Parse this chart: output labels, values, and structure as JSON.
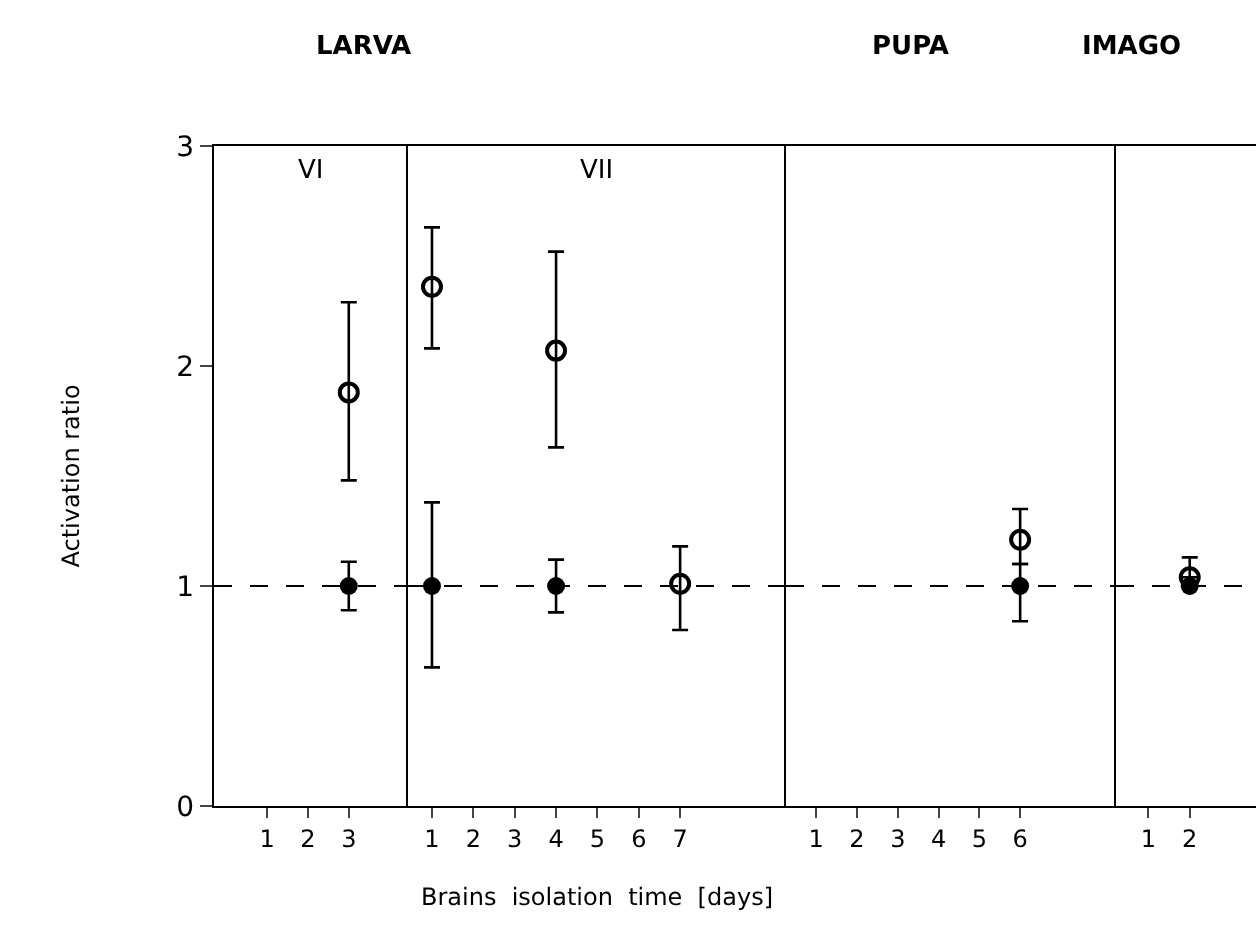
{
  "chart_data": [
    {
      "type": "scatter",
      "title": "LARVA",
      "ylabel": "Activation ratio",
      "annotations": [
        "VI"
      ],
      "xlim": [
        -0.3,
        4.45
      ],
      "xticks": [
        1,
        2,
        3
      ],
      "ylim": [
        0,
        3
      ],
      "yticks": [
        0,
        1,
        2,
        3
      ],
      "grid": false,
      "ref_lines": [
        {
          "axis": "y",
          "value": 1,
          "line_style": "dashed",
          "color": "#000000"
        }
      ],
      "series": [
        {
          "color": "#000000",
          "marker": "circle",
          "x": [
            3
          ],
          "values": [
            1.0
          ],
          "errors": [
            [
              0.89,
              1.11
            ]
          ]
        },
        {
          "color": "#000000",
          "marker": "circle-open",
          "x": [
            3
          ],
          "values": [
            1.88
          ],
          "errors": [
            [
              1.48,
              2.29
            ]
          ]
        }
      ]
    },
    {
      "type": "scatter",
      "xlabel": "Brains  isolation  time  [days]",
      "annotations": [
        "VII"
      ],
      "tick_labels": "x",
      "xlim": [
        0.42,
        9.56
      ],
      "xticks": [
        1,
        2,
        3,
        4,
        5,
        6,
        7
      ],
      "ylim": [
        0,
        3
      ],
      "grid": false,
      "ref_lines": [
        {
          "axis": "y",
          "value": 1,
          "line_style": "dashed",
          "color": "#000000"
        }
      ],
      "series": [
        {
          "color": "#000000",
          "marker": "circle",
          "x": [
            1,
            4
          ],
          "values": [
            1.0,
            1.0
          ],
          "errors": [
            [
              0.63,
              1.38
            ],
            [
              0.88,
              1.12
            ]
          ]
        },
        {
          "color": "#000000",
          "marker": "circle-open",
          "x": [
            1,
            4,
            7
          ],
          "values": [
            2.36,
            2.07,
            1.01
          ],
          "errors": [
            [
              2.08,
              2.63
            ],
            [
              1.63,
              2.52
            ],
            [
              0.8,
              1.18
            ]
          ]
        }
      ]
    },
    {
      "type": "scatter",
      "title": "PUPA",
      "tick_labels": "x",
      "xlim": [
        0.26,
        8.35
      ],
      "xticks": [
        1,
        2,
        3,
        4,
        5,
        6
      ],
      "ylim": [
        0,
        3
      ],
      "grid": false,
      "ref_lines": [
        {
          "axis": "y",
          "value": 1,
          "line_style": "dashed",
          "color": "#000000"
        }
      ],
      "series": [
        {
          "color": "#000000",
          "marker": "circle",
          "x": [
            6
          ],
          "values": [
            1.0
          ],
          "errors": [
            [
              0.84,
              1.1
            ]
          ]
        },
        {
          "color": "#000000",
          "marker": "circle-open",
          "x": [
            6
          ],
          "values": [
            1.21
          ],
          "errors": [
            [
              1.1,
              1.35
            ]
          ]
        }
      ]
    },
    {
      "type": "scatter",
      "title": "IMAGO",
      "tick_labels": "x",
      "xlim": [
        0.22,
        3.6
      ],
      "xticks": [
        1,
        2
      ],
      "ylim": [
        0,
        3
      ],
      "grid": false,
      "ref_lines": [
        {
          "axis": "y",
          "value": 1,
          "line_style": "dashed",
          "color": "#000000"
        }
      ],
      "series": [
        {
          "color": "#000000",
          "marker": "circle",
          "x": [
            2
          ],
          "values": [
            1.0
          ]
        },
        {
          "color": "#000000",
          "marker": "circle-open",
          "x": [
            2
          ],
          "values": [
            1.04
          ],
          "errors": [
            [
              1.04,
              1.13
            ]
          ]
        }
      ]
    }
  ]
}
